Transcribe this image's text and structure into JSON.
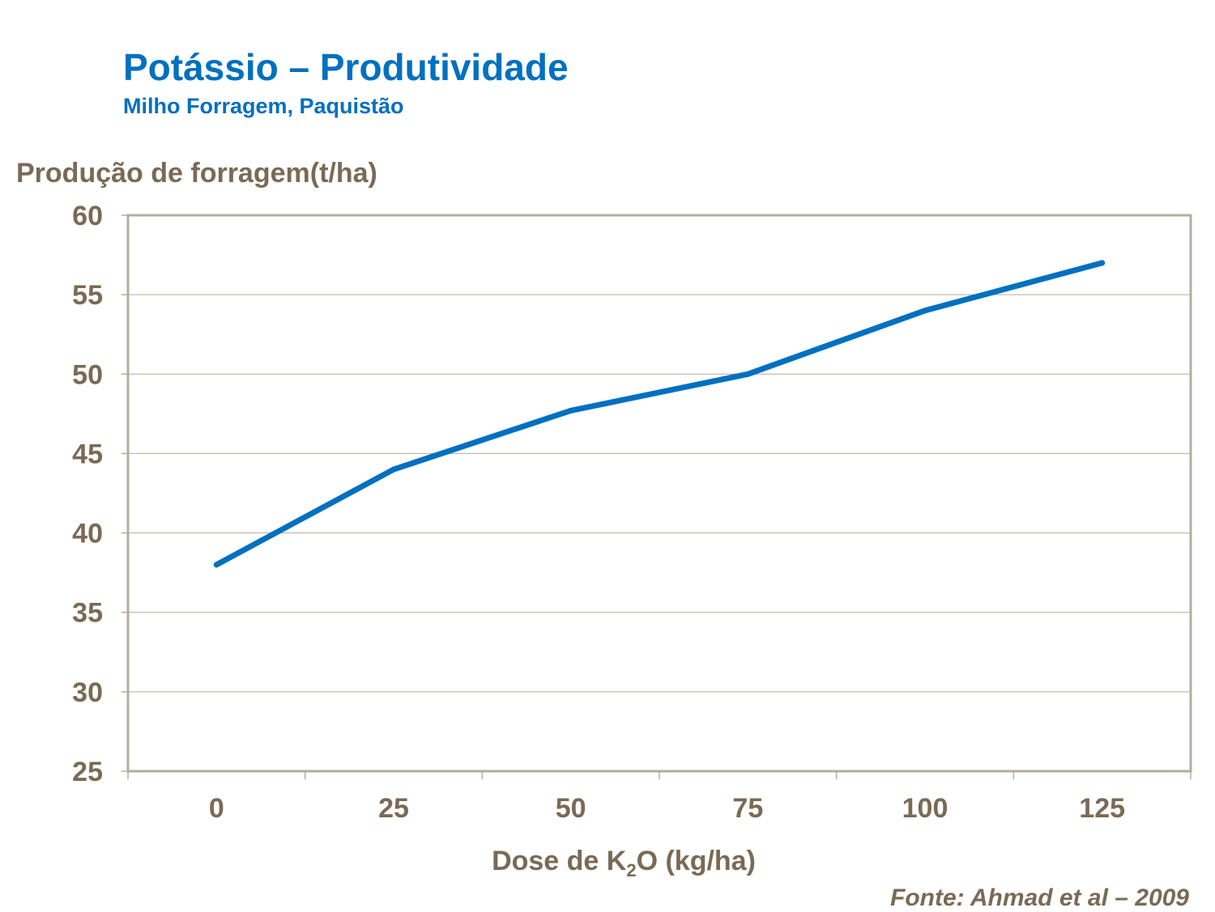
{
  "chart_data": {
    "type": "line",
    "title": "Potássio – Produtividade",
    "subtitle": "Milho Forragem, Paquistão",
    "ylabel": "Produção de forragem(t/ha)",
    "xlabel_parts": {
      "before": "Dose de K",
      "sub": "2",
      "after": "O (kg/ha)"
    },
    "categories": [
      "0",
      "25",
      "50",
      "75",
      "100",
      "125"
    ],
    "values": [
      38,
      44,
      47.7,
      50,
      54,
      57
    ],
    "ylim": [
      25,
      60
    ],
    "yticks": [
      "25",
      "30",
      "35",
      "40",
      "45",
      "50",
      "55",
      "60"
    ],
    "grid": true,
    "legend": "none",
    "colors": {
      "line": "#0070c0",
      "text": "#7a6a55",
      "frame": "#b5aca0",
      "title": "#0070c0"
    }
  },
  "source": "Fonte:  Ahmad et al – 2009"
}
